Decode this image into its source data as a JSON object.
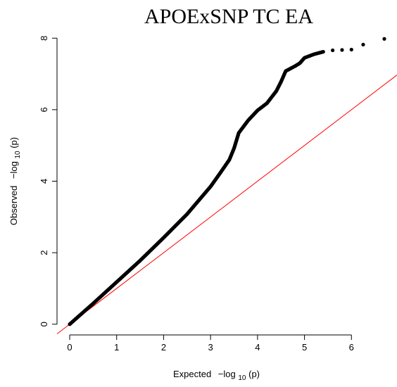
{
  "chart_data": {
    "type": "scatter",
    "title": "APOExSNP TC EA",
    "xlabel": {
      "prefix": "Expected",
      "func": "−log",
      "sub": "10",
      "arg": "(p)"
    },
    "ylabel": {
      "prefix": "Observed",
      "func": "−log",
      "sub": "10",
      "arg": "(p)"
    },
    "xlim": [
      -0.27,
      6.97
    ],
    "ylim": [
      -0.3,
      8.3
    ],
    "xticks": [
      "0",
      "1",
      "2",
      "3",
      "4",
      "5",
      "6"
    ],
    "yticks": [
      "0",
      "2",
      "4",
      "6",
      "8"
    ],
    "grid": false,
    "reference_line": {
      "slope": 1,
      "intercept": 0,
      "color": "#ff0000"
    },
    "point_color": "#000000",
    "series": [
      {
        "x": [
          0.0,
          0.5,
          1.0,
          1.5,
          2.0,
          2.5,
          3.0,
          3.2,
          3.4,
          3.5,
          3.6,
          3.8,
          4.0,
          4.2,
          4.4,
          4.5,
          4.6,
          4.8,
          4.9,
          5.0,
          5.2,
          5.4,
          5.6,
          5.8,
          6.0,
          6.25,
          6.7
        ],
        "y": [
          0.0,
          0.58,
          1.18,
          1.78,
          2.42,
          3.08,
          3.85,
          4.22,
          4.6,
          4.92,
          5.35,
          5.7,
          5.98,
          6.18,
          6.52,
          6.78,
          7.08,
          7.22,
          7.3,
          7.45,
          7.55,
          7.62,
          7.66,
          7.67,
          7.68,
          7.82,
          7.98
        ]
      }
    ]
  }
}
